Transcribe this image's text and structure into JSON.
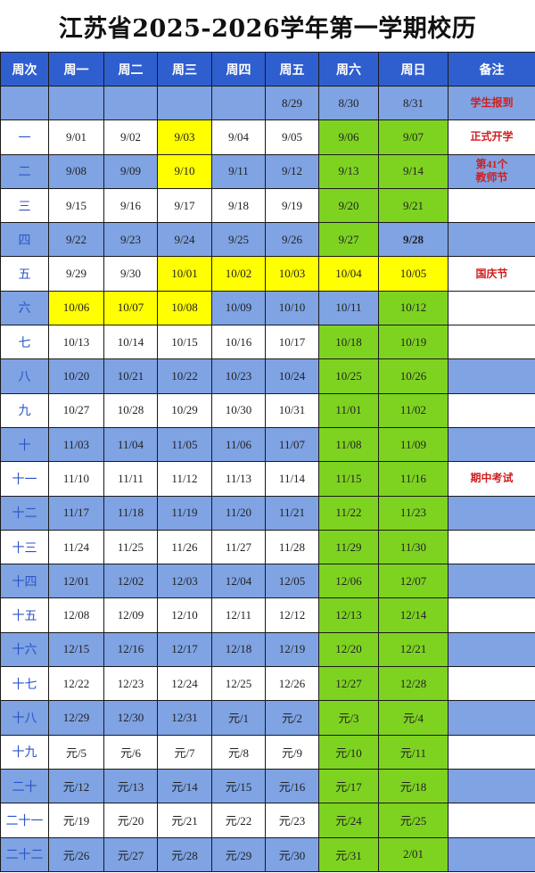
{
  "title": "江苏省2025-2026学年第一学期校历",
  "headers": [
    "周次",
    "周一",
    "周二",
    "周三",
    "周四",
    "周五",
    "周六",
    "周日",
    "备注"
  ],
  "colors": {
    "header": "#2f5fcf",
    "shade": "#7fa3e3",
    "rest": "#7ed321",
    "holiday": "#ffff00",
    "remark": "#d01e1e"
  },
  "legend_types": {
    "w": "normal",
    "h": "holiday",
    "r": "weekend",
    "b": "makeup-workday-bold"
  },
  "rows": [
    {
      "week": "",
      "dates": [
        "",
        "",
        "",
        "",
        "8/29",
        "8/30",
        "8/31"
      ],
      "types": "wwwwwww",
      "remark": "学生报到"
    },
    {
      "week": "一",
      "dates": [
        "9/01",
        "9/02",
        "9/03",
        "9/04",
        "9/05",
        "9/06",
        "9/07"
      ],
      "types": "wwhwwrr",
      "remark": "正式开学"
    },
    {
      "week": "二",
      "dates": [
        "9/08",
        "9/09",
        "9/10",
        "9/11",
        "9/12",
        "9/13",
        "9/14"
      ],
      "types": "wwhwwrr",
      "remark": "第41个教师节"
    },
    {
      "week": "三",
      "dates": [
        "9/15",
        "9/16",
        "9/17",
        "9/18",
        "9/19",
        "9/20",
        "9/21"
      ],
      "types": "wwwwwrr",
      "remark": ""
    },
    {
      "week": "四",
      "dates": [
        "9/22",
        "9/23",
        "9/24",
        "9/25",
        "9/26",
        "9/27",
        "9/28"
      ],
      "types": "wwwwwrb",
      "remark": ""
    },
    {
      "week": "五",
      "dates": [
        "9/29",
        "9/30",
        "10/01",
        "10/02",
        "10/03",
        "10/04",
        "10/05"
      ],
      "types": "wwhhhhh",
      "remark": "国庆节"
    },
    {
      "week": "六",
      "dates": [
        "10/06",
        "10/07",
        "10/08",
        "10/09",
        "10/10",
        "10/11",
        "10/12"
      ],
      "types": "hhhwwwr",
      "remark": ""
    },
    {
      "week": "七",
      "dates": [
        "10/13",
        "10/14",
        "10/15",
        "10/16",
        "10/17",
        "10/18",
        "10/19"
      ],
      "types": "wwwwwrr",
      "remark": ""
    },
    {
      "week": "八",
      "dates": [
        "10/20",
        "10/21",
        "10/22",
        "10/23",
        "10/24",
        "10/25",
        "10/26"
      ],
      "types": "wwwwwrr",
      "remark": ""
    },
    {
      "week": "九",
      "dates": [
        "10/27",
        "10/28",
        "10/29",
        "10/30",
        "10/31",
        "11/01",
        "11/02"
      ],
      "types": "wwwwwrr",
      "remark": ""
    },
    {
      "week": "十",
      "dates": [
        "11/03",
        "11/04",
        "11/05",
        "11/06",
        "11/07",
        "11/08",
        "11/09"
      ],
      "types": "wwwwwrr",
      "remark": ""
    },
    {
      "week": "十一",
      "dates": [
        "11/10",
        "11/11",
        "11/12",
        "11/13",
        "11/14",
        "11/15",
        "11/16"
      ],
      "types": "wwwwwrr",
      "remark": "期中考试"
    },
    {
      "week": "十二",
      "dates": [
        "11/17",
        "11/18",
        "11/19",
        "11/20",
        "11/21",
        "11/22",
        "11/23"
      ],
      "types": "wwwwwrr",
      "remark": ""
    },
    {
      "week": "十三",
      "dates": [
        "11/24",
        "11/25",
        "11/26",
        "11/27",
        "11/28",
        "11/29",
        "11/30"
      ],
      "types": "wwwwwrr",
      "remark": ""
    },
    {
      "week": "十四",
      "dates": [
        "12/01",
        "12/02",
        "12/03",
        "12/04",
        "12/05",
        "12/06",
        "12/07"
      ],
      "types": "wwwwwrr",
      "remark": ""
    },
    {
      "week": "十五",
      "dates": [
        "12/08",
        "12/09",
        "12/10",
        "12/11",
        "12/12",
        "12/13",
        "12/14"
      ],
      "types": "wwwwwrr",
      "remark": ""
    },
    {
      "week": "十六",
      "dates": [
        "12/15",
        "12/16",
        "12/17",
        "12/18",
        "12/19",
        "12/20",
        "12/21"
      ],
      "types": "wwwwwrr",
      "remark": ""
    },
    {
      "week": "十七",
      "dates": [
        "12/22",
        "12/23",
        "12/24",
        "12/25",
        "12/26",
        "12/27",
        "12/28"
      ],
      "types": "wwwwwrr",
      "remark": ""
    },
    {
      "week": "十八",
      "dates": [
        "12/29",
        "12/30",
        "12/31",
        "元/1",
        "元/2",
        "元/3",
        "元/4"
      ],
      "types": "wwwwwrr",
      "remark": ""
    },
    {
      "week": "十九",
      "dates": [
        "元/5",
        "元/6",
        "元/7",
        "元/8",
        "元/9",
        "元/10",
        "元/11"
      ],
      "types": "wwwwwrr",
      "remark": ""
    },
    {
      "week": "二十",
      "dates": [
        "元/12",
        "元/13",
        "元/14",
        "元/15",
        "元/16",
        "元/17",
        "元/18"
      ],
      "types": "wwwwwrr",
      "remark": ""
    },
    {
      "week": "二十一",
      "dates": [
        "元/19",
        "元/20",
        "元/21",
        "元/22",
        "元/23",
        "元/24",
        "元/25"
      ],
      "types": "wwwwwrr",
      "remark": ""
    },
    {
      "week": "二十二",
      "dates": [
        "元/26",
        "元/27",
        "元/28",
        "元/29",
        "元/30",
        "元/31",
        "2/01"
      ],
      "types": "wwwwwrr",
      "remark": ""
    }
  ]
}
